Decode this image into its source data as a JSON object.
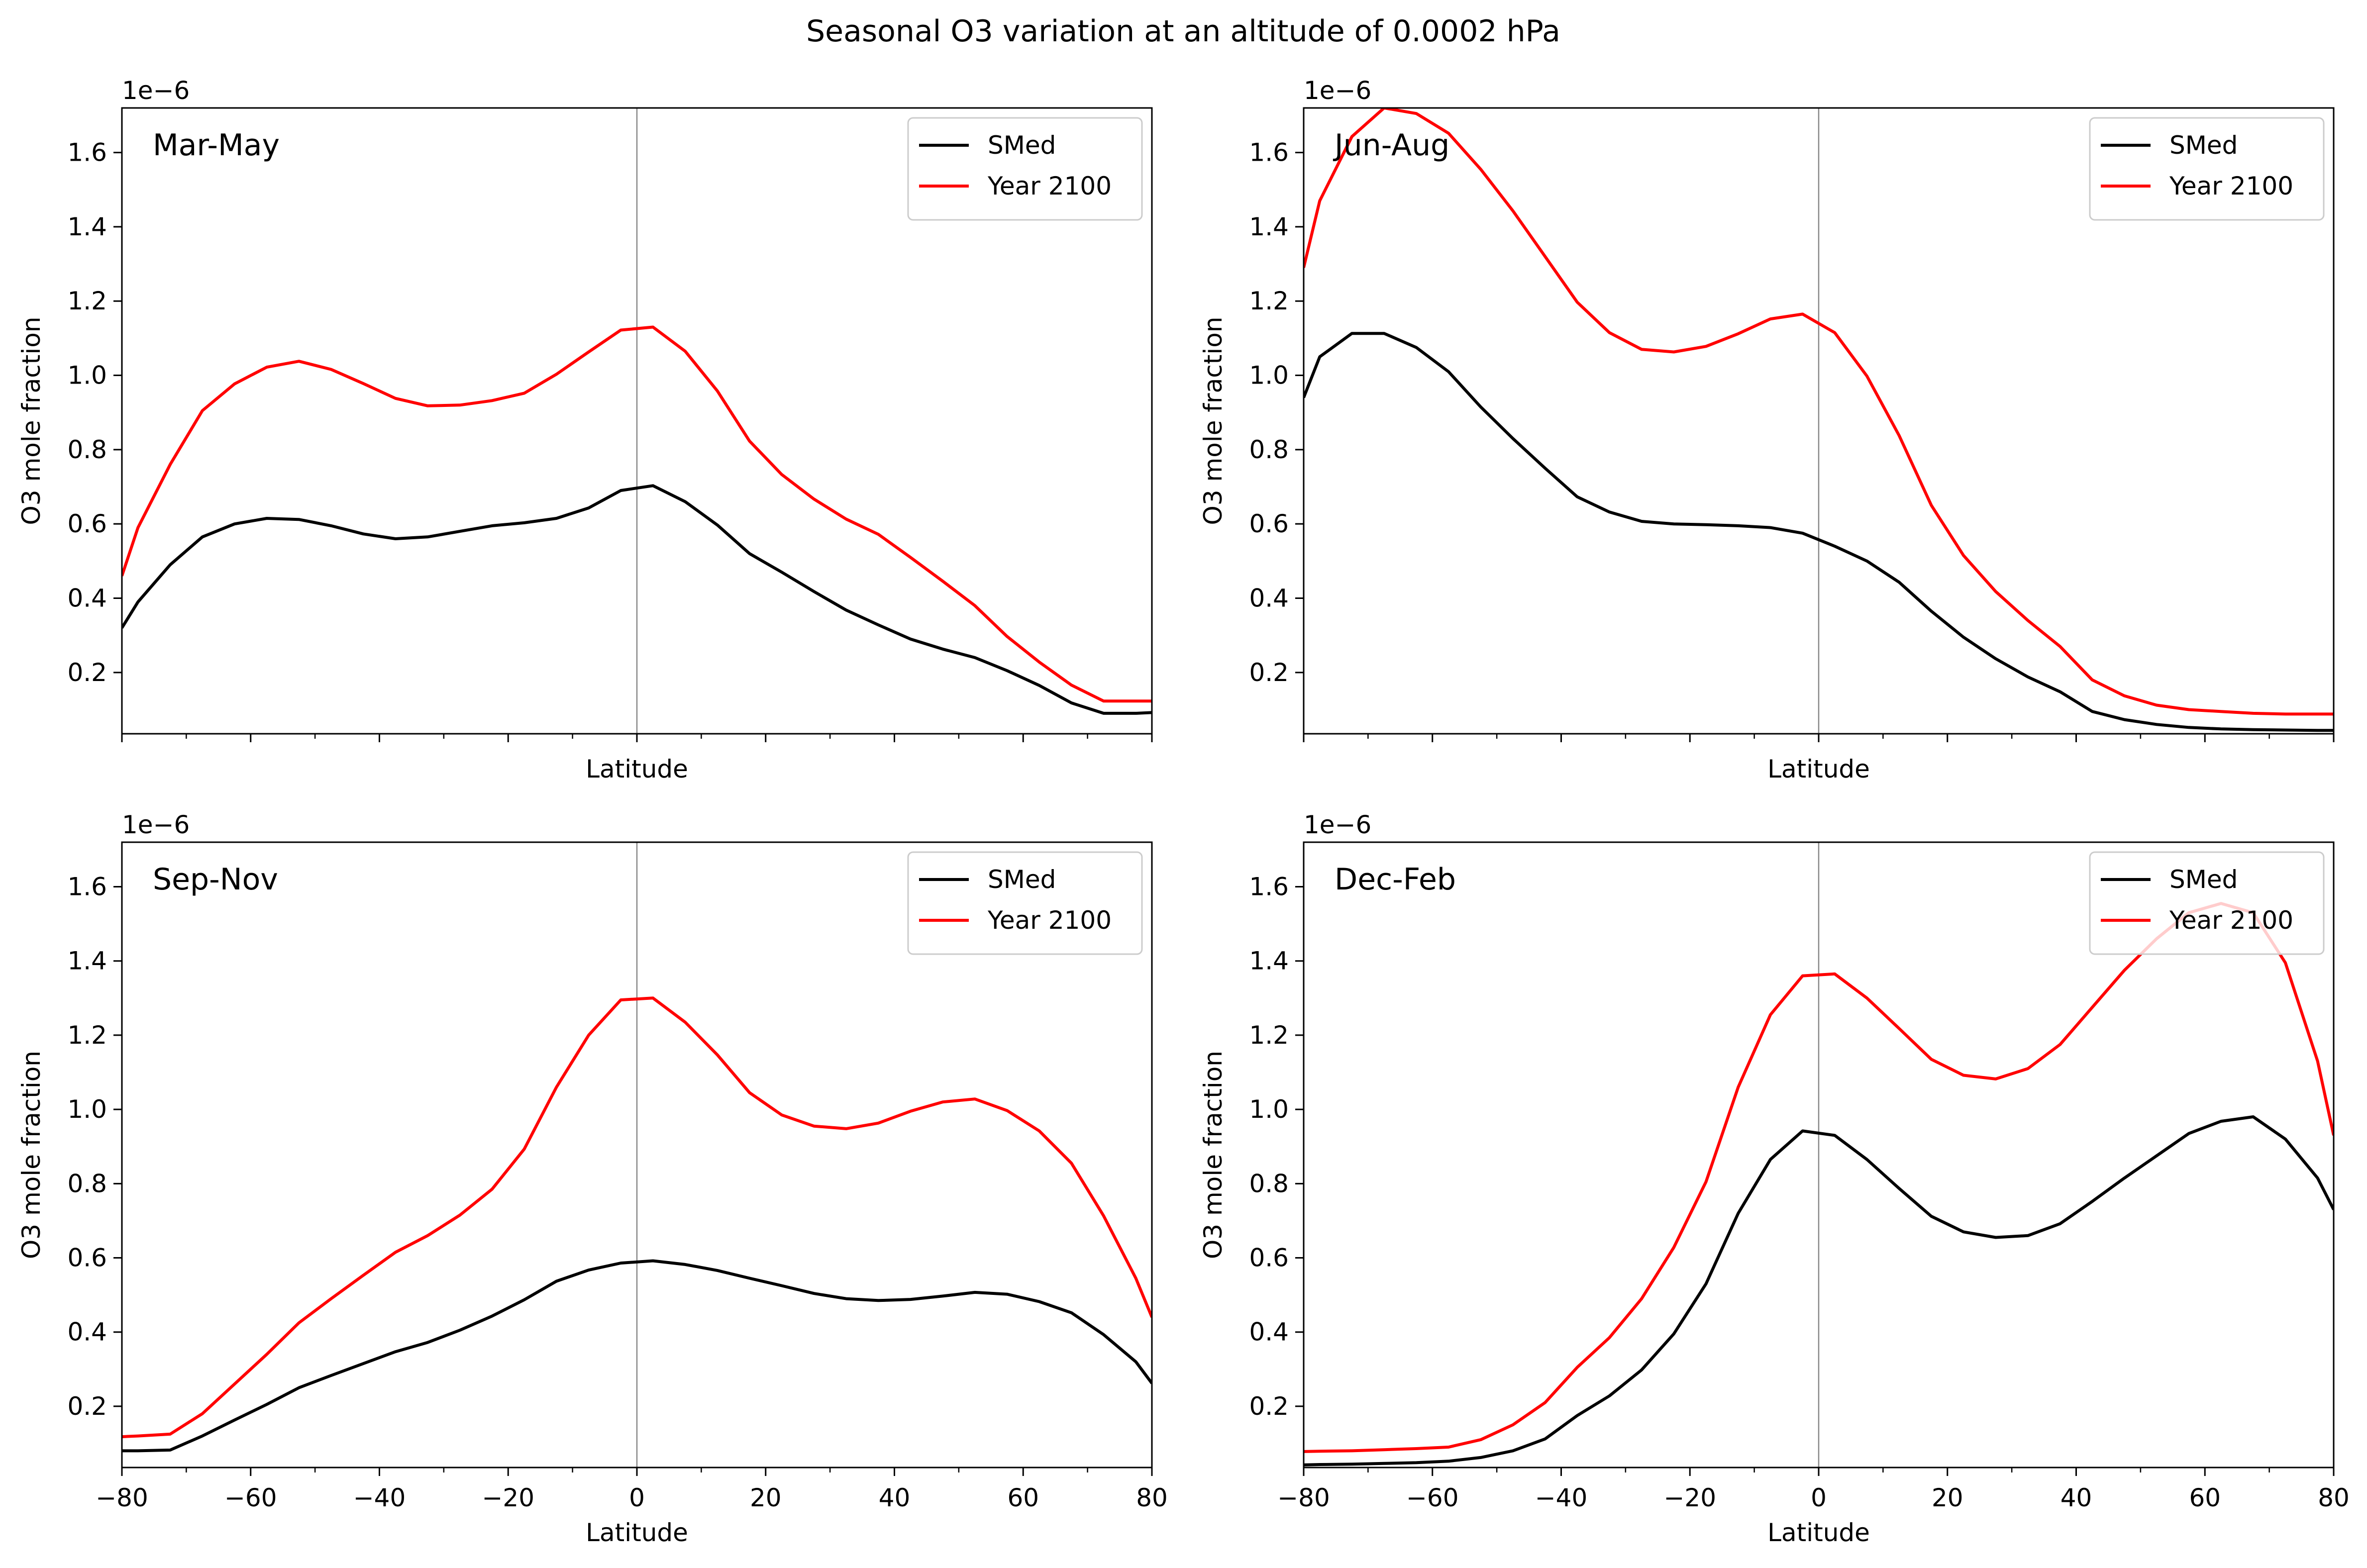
{
  "figure": {
    "title": "Seasonal O3 variation at an altitude of 0.0002 hPa"
  },
  "chart_data": [
    {
      "type": "line",
      "panel_label": "Mar-May",
      "xlabel": "Latitude",
      "ylabel": "O3 mole fraction",
      "y_offset_label": "1e−6",
      "show_xtick_labels": false,
      "xlim": [
        -80,
        80
      ],
      "ylim": [
        0.035,
        1.72
      ],
      "xticks": [
        -80,
        -60,
        -40,
        -20,
        0,
        20,
        40,
        60,
        80
      ],
      "yticks": [
        0.2,
        0.4,
        0.6,
        0.8,
        1.0,
        1.2,
        1.4,
        1.6
      ],
      "vline_x": 0,
      "legend_position": "top-right",
      "x": [
        -80,
        -77.5,
        -72.5,
        -67.5,
        -62.5,
        -57.5,
        -52.5,
        -47.5,
        -42.5,
        -37.5,
        -32.5,
        -27.5,
        -22.5,
        -17.5,
        -12.5,
        -7.5,
        -2.5,
        2.5,
        7.5,
        12.5,
        17.5,
        22.5,
        27.5,
        32.5,
        37.5,
        42.5,
        47.5,
        52.5,
        57.5,
        62.5,
        67.5,
        72.5,
        77.5,
        80
      ],
      "series": [
        {
          "name": "SMed",
          "color": "#000000",
          "values": [
            0.32,
            0.39,
            0.49,
            0.565,
            0.6,
            0.615,
            0.612,
            0.595,
            0.573,
            0.56,
            0.565,
            0.58,
            0.595,
            0.603,
            0.615,
            0.643,
            0.69,
            0.703,
            0.66,
            0.597,
            0.52,
            0.47,
            0.418,
            0.368,
            0.328,
            0.29,
            0.263,
            0.24,
            0.205,
            0.165,
            0.118,
            0.09,
            0.09,
            0.092
          ]
        },
        {
          "name": "Year 2100",
          "color": "#ff0000",
          "values": [
            0.46,
            0.59,
            0.76,
            0.905,
            0.977,
            1.022,
            1.038,
            1.016,
            0.978,
            0.938,
            0.918,
            0.92,
            0.932,
            0.952,
            1.003,
            1.063,
            1.122,
            1.13,
            1.065,
            0.958,
            0.823,
            0.733,
            0.667,
            0.613,
            0.572,
            0.51,
            0.446,
            0.38,
            0.297,
            0.228,
            0.166,
            0.123,
            0.123,
            0.123
          ]
        }
      ]
    },
    {
      "type": "line",
      "panel_label": "Jun-Aug",
      "xlabel": "Latitude",
      "ylabel": "O3 mole fraction",
      "y_offset_label": "1e−6",
      "show_xtick_labels": false,
      "xlim": [
        -80,
        80
      ],
      "ylim": [
        0.035,
        1.72
      ],
      "xticks": [
        -80,
        -60,
        -40,
        -20,
        0,
        20,
        40,
        60,
        80
      ],
      "yticks": [
        0.2,
        0.4,
        0.6,
        0.8,
        1.0,
        1.2,
        1.4,
        1.6
      ],
      "vline_x": 0,
      "legend_position": "top-right",
      "x": [
        -80,
        -77.5,
        -72.5,
        -67.5,
        -62.5,
        -57.5,
        -52.5,
        -47.5,
        -42.5,
        -37.5,
        -32.5,
        -27.5,
        -22.5,
        -17.5,
        -12.5,
        -7.5,
        -2.5,
        2.5,
        7.5,
        12.5,
        17.5,
        22.5,
        27.5,
        32.5,
        37.5,
        42.5,
        47.5,
        52.5,
        57.5,
        62.5,
        67.5,
        72.5,
        77.5,
        80
      ],
      "series": [
        {
          "name": "SMed",
          "color": "#000000",
          "values": [
            0.94,
            1.05,
            1.113,
            1.113,
            1.075,
            1.01,
            0.915,
            0.83,
            0.75,
            0.673,
            0.632,
            0.607,
            0.6,
            0.598,
            0.595,
            0.59,
            0.575,
            0.54,
            0.5,
            0.443,
            0.365,
            0.295,
            0.237,
            0.188,
            0.148,
            0.095,
            0.073,
            0.06,
            0.052,
            0.048,
            0.046,
            0.045,
            0.044,
            0.044
          ]
        },
        {
          "name": "Year 2100",
          "color": "#ff0000",
          "values": [
            1.29,
            1.47,
            1.643,
            1.72,
            1.705,
            1.652,
            1.555,
            1.443,
            1.32,
            1.197,
            1.115,
            1.07,
            1.063,
            1.078,
            1.112,
            1.152,
            1.165,
            1.115,
            0.998,
            0.838,
            0.65,
            0.515,
            0.418,
            0.34,
            0.27,
            0.18,
            0.137,
            0.112,
            0.1,
            0.095,
            0.09,
            0.088,
            0.088,
            0.088
          ]
        }
      ]
    },
    {
      "type": "line",
      "panel_label": "Sep-Nov",
      "xlabel": "Latitude",
      "ylabel": "O3 mole fraction",
      "y_offset_label": "1e−6",
      "show_xtick_labels": true,
      "xlim": [
        -80,
        80
      ],
      "ylim": [
        0.035,
        1.72
      ],
      "xticks": [
        -80,
        -60,
        -40,
        -20,
        0,
        20,
        40,
        60,
        80
      ],
      "yticks": [
        0.2,
        0.4,
        0.6,
        0.8,
        1.0,
        1.2,
        1.4,
        1.6
      ],
      "vline_x": 0,
      "legend_position": "top-right",
      "x": [
        -80,
        -77.5,
        -72.5,
        -67.5,
        -62.5,
        -57.5,
        -52.5,
        -47.5,
        -42.5,
        -37.5,
        -32.5,
        -27.5,
        -22.5,
        -17.5,
        -12.5,
        -7.5,
        -2.5,
        2.5,
        7.5,
        12.5,
        17.5,
        22.5,
        27.5,
        32.5,
        37.5,
        42.5,
        47.5,
        52.5,
        57.5,
        62.5,
        67.5,
        72.5,
        77.5,
        80
      ],
      "series": [
        {
          "name": "SMed",
          "color": "#000000",
          "values": [
            0.08,
            0.08,
            0.082,
            0.12,
            0.163,
            0.205,
            0.25,
            0.283,
            0.315,
            0.347,
            0.372,
            0.405,
            0.443,
            0.487,
            0.537,
            0.567,
            0.586,
            0.592,
            0.582,
            0.566,
            0.545,
            0.525,
            0.504,
            0.49,
            0.485,
            0.488,
            0.497,
            0.507,
            0.502,
            0.482,
            0.452,
            0.393,
            0.32,
            0.262
          ]
        },
        {
          "name": "Year 2100",
          "color": "#ff0000",
          "values": [
            0.118,
            0.12,
            0.125,
            0.18,
            0.26,
            0.34,
            0.425,
            0.49,
            0.553,
            0.615,
            0.66,
            0.715,
            0.785,
            0.893,
            1.06,
            1.2,
            1.295,
            1.3,
            1.235,
            1.147,
            1.045,
            0.985,
            0.955,
            0.948,
            0.963,
            0.995,
            1.02,
            1.028,
            0.997,
            0.942,
            0.855,
            0.713,
            0.545,
            0.44
          ]
        }
      ]
    },
    {
      "type": "line",
      "panel_label": "Dec-Feb",
      "xlabel": "Latitude",
      "ylabel": "O3 mole fraction",
      "y_offset_label": "1e−6",
      "show_xtick_labels": true,
      "xlim": [
        -80,
        80
      ],
      "ylim": [
        0.035,
        1.72
      ],
      "xticks": [
        -80,
        -60,
        -40,
        -20,
        0,
        20,
        40,
        60,
        80
      ],
      "yticks": [
        0.2,
        0.4,
        0.6,
        0.8,
        1.0,
        1.2,
        1.4,
        1.6
      ],
      "vline_x": 0,
      "legend_position": "top-right",
      "x": [
        -80,
        -77.5,
        -72.5,
        -67.5,
        -62.5,
        -57.5,
        -52.5,
        -47.5,
        -42.5,
        -37.5,
        -32.5,
        -27.5,
        -22.5,
        -17.5,
        -12.5,
        -7.5,
        -2.5,
        2.5,
        7.5,
        12.5,
        17.5,
        22.5,
        27.5,
        32.5,
        37.5,
        42.5,
        47.5,
        52.5,
        57.5,
        62.5,
        67.5,
        72.5,
        77.5,
        80
      ],
      "series": [
        {
          "name": "SMed",
          "color": "#000000",
          "values": [
            0.042,
            0.043,
            0.044,
            0.046,
            0.048,
            0.052,
            0.062,
            0.08,
            0.112,
            0.175,
            0.228,
            0.298,
            0.395,
            0.53,
            0.72,
            0.865,
            0.942,
            0.93,
            0.865,
            0.787,
            0.712,
            0.67,
            0.655,
            0.66,
            0.692,
            0.752,
            0.815,
            0.875,
            0.935,
            0.968,
            0.98,
            0.92,
            0.815,
            0.73
          ]
        },
        {
          "name": "Year 2100",
          "color": "#ff0000",
          "values": [
            0.078,
            0.079,
            0.08,
            0.083,
            0.086,
            0.09,
            0.11,
            0.15,
            0.21,
            0.305,
            0.385,
            0.49,
            0.628,
            0.805,
            1.06,
            1.255,
            1.36,
            1.365,
            1.3,
            1.218,
            1.135,
            1.092,
            1.082,
            1.11,
            1.175,
            1.275,
            1.375,
            1.46,
            1.53,
            1.555,
            1.53,
            1.395,
            1.13,
            0.93
          ]
        }
      ]
    }
  ]
}
